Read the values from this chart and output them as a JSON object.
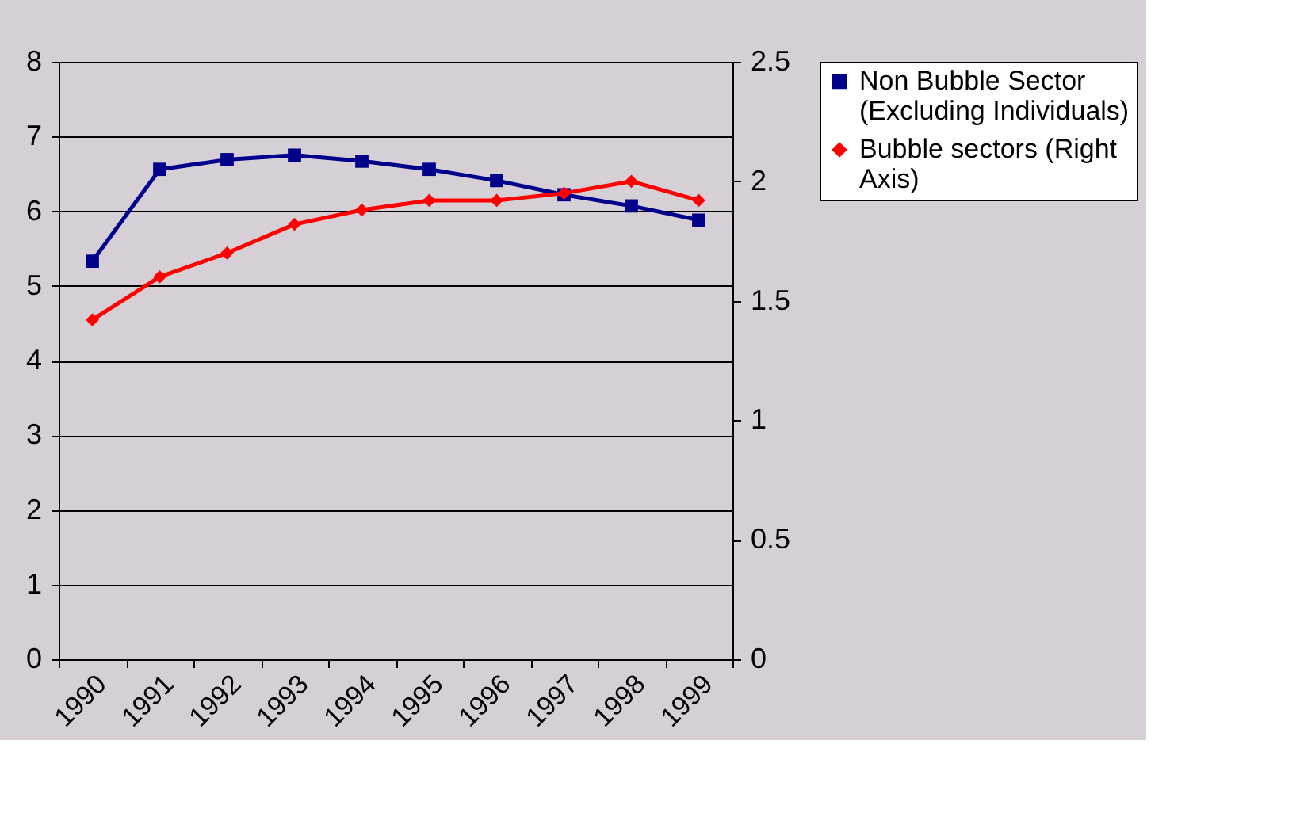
{
  "chart_data": {
    "type": "line",
    "categories": [
      "1990",
      "1991",
      "1992",
      "1993",
      "1994",
      "1995",
      "1996",
      "1997",
      "1998",
      "1999"
    ],
    "series": [
      {
        "name": "Non Bubble Sector (Excluding Individuals)",
        "color": "#00008b",
        "marker": "square",
        "values": [
          5.33,
          6.56,
          6.69,
          6.75,
          6.67,
          6.56,
          6.41,
          6.22,
          6.07,
          5.88
        ]
      },
      {
        "name": "Bubble sectors (Right Axis)",
        "color": "#ff0000",
        "marker": "diamond",
        "axis": "y2",
        "values": [
          1.42,
          1.6,
          1.7,
          1.82,
          1.88,
          1.92,
          1.92,
          1.95,
          2.0,
          1.92
        ]
      }
    ],
    "ylim": [
      0,
      8
    ],
    "yticks": [
      0,
      1,
      2,
      3,
      4,
      5,
      6,
      7,
      8
    ],
    "y2lim": [
      0,
      2.5
    ],
    "y2ticks": [
      0,
      0.5,
      1,
      1.5,
      2,
      2.5
    ],
    "grid": "y",
    "legend": "right",
    "line_style": "solid"
  }
}
